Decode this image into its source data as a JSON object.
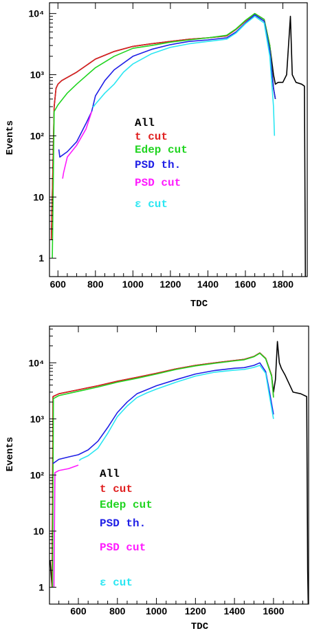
{
  "chart_data": [
    {
      "type": "line",
      "xlabel": "TDC",
      "ylabel": "Events",
      "xlim": [
        555,
        1930
      ],
      "ylog": true,
      "ylim": [
        0.5,
        15000
      ],
      "xticks": [
        600,
        800,
        1000,
        1200,
        1400,
        1600,
        1800
      ],
      "xtick_labels": [
        "600",
        "800",
        "1000",
        "1200",
        "1400",
        "1600",
        "1800"
      ],
      "yticks": [
        1,
        10,
        100,
        1000,
        10000
      ],
      "ytick_labels": [
        "1",
        "10",
        "10²",
        "10³",
        "10⁴"
      ],
      "series": [
        {
          "name": "All",
          "color": "#000000",
          "x": [
            565,
            580,
            590,
            600,
            620,
            650,
            700,
            800,
            900,
            1000,
            1100,
            1200,
            1300,
            1400,
            1500,
            1550,
            1600,
            1650,
            1700,
            1730,
            1750,
            1760,
            1775,
            1800,
            1820,
            1840,
            1850,
            1870,
            1900,
            1915,
            1920
          ],
          "y": [
            2,
            300,
            600,
            700,
            800,
            900,
            1100,
            1800,
            2400,
            2900,
            3200,
            3500,
            3800,
            4000,
            4300,
            5500,
            7500,
            10000,
            8000,
            3000,
            1000,
            700,
            750,
            750,
            1000,
            9000,
            1000,
            750,
            700,
            650,
            0.5
          ]
        },
        {
          "name": "t cut",
          "color": "#e02020",
          "x": [
            565,
            580,
            590,
            600,
            620,
            650,
            700,
            800,
            900,
            1000,
            1100,
            1200,
            1300,
            1400,
            1500,
            1550,
            1600,
            1650,
            1700,
            1730,
            1750,
            1760
          ],
          "y": [
            2,
            300,
            600,
            700,
            800,
            900,
            1100,
            1800,
            2400,
            2900,
            3200,
            3500,
            3800,
            4000,
            4300,
            5500,
            7500,
            10000,
            8000,
            3000,
            600,
            400
          ]
        },
        {
          "name": "Edep cut",
          "color": "#1fd41f",
          "x": [
            570,
            580,
            600,
            650,
            700,
            800,
            900,
            1000,
            1100,
            1200,
            1300,
            1400,
            1500,
            1550,
            1600,
            1650,
            1700,
            1730,
            1750,
            1760
          ],
          "y": [
            1,
            250,
            320,
            500,
            700,
            1300,
            2000,
            2700,
            3000,
            3400,
            3700,
            4000,
            4400,
            5600,
            7700,
            10000,
            8000,
            3000,
            600,
            400
          ]
        },
        {
          "name": "PSD th.",
          "color": "#1e1ee6",
          "x": [
            605,
            610,
            650,
            700,
            750,
            780,
            800,
            850,
            900,
            1000,
            1100,
            1200,
            1300,
            1400,
            1500,
            1550,
            1600,
            1650,
            1700,
            1730,
            1750,
            1760
          ],
          "y": [
            60,
            45,
            55,
            80,
            160,
            250,
            450,
            800,
            1200,
            2000,
            2600,
            3100,
            3500,
            3700,
            4000,
            5000,
            7000,
            9500,
            7500,
            2500,
            600,
            400
          ]
        },
        {
          "name": "PSD cut",
          "color": "#ff19ff",
          "x": [
            625,
            630,
            650,
            700,
            750,
            780
          ],
          "y": [
            20,
            25,
            45,
            70,
            130,
            250
          ]
        },
        {
          "name": "ε cut",
          "color": "#2ae6f2",
          "x": [
            785,
            790,
            800,
            850,
            900,
            950,
            1000,
            1100,
            1200,
            1300,
            1400,
            1500,
            1550,
            1600,
            1650,
            1700,
            1730,
            1750,
            1755
          ],
          "y": [
            300,
            300,
            330,
            500,
            700,
            1100,
            1500,
            2200,
            2800,
            3200,
            3500,
            3800,
            4800,
            6800,
            9000,
            7000,
            2000,
            300,
            100
          ]
        }
      ]
    },
    {
      "type": "line",
      "xlabel": "TDC",
      "ylabel": "Events",
      "xlim": [
        452,
        1780
      ],
      "ylog": true,
      "ylim": [
        0.5,
        45000
      ],
      "xticks": [
        600,
        800,
        1000,
        1200,
        1400,
        1600
      ],
      "xtick_labels": [
        "600",
        "800",
        "1000",
        "1200",
        "1400",
        "1600"
      ],
      "yticks": [
        1,
        10,
        100,
        1000,
        10000
      ],
      "ytick_labels": [
        "1",
        "10",
        "10²",
        "10³",
        "10⁴"
      ],
      "series": [
        {
          "name": "All",
          "color": "#000000",
          "x": [
            455,
            465,
            470,
            500,
            600,
            700,
            800,
            900,
            1000,
            1100,
            1200,
            1300,
            1400,
            1450,
            1500,
            1530,
            1560,
            1590,
            1600,
            1610,
            1620,
            1630,
            1640,
            1660,
            1700,
            1740,
            1770,
            1775,
            1778
          ],
          "y": [
            3,
            1,
            2500,
            2800,
            3300,
            3900,
            4700,
            5500,
            6500,
            7800,
            9000,
            10000,
            11000,
            11500,
            13000,
            15000,
            12000,
            6000,
            3000,
            5000,
            24000,
            10000,
            8000,
            6000,
            3000,
            2800,
            2500,
            2,
            0.5
          ]
        },
        {
          "name": "t cut",
          "color": "#e02020",
          "x": [
            465,
            470,
            500,
            600,
            700,
            800,
            900,
            1000,
            1100,
            1200,
            1300,
            1400,
            1450,
            1500,
            1530,
            1560,
            1590,
            1600
          ],
          "y": [
            1,
            2500,
            2800,
            3300,
            3900,
            4700,
            5500,
            6500,
            7800,
            9000,
            10000,
            11000,
            11500,
            13000,
            15000,
            12000,
            6000,
            2500
          ]
        },
        {
          "name": "Edep cut",
          "color": "#1fd41f",
          "x": [
            468,
            472,
            500,
            600,
            700,
            800,
            900,
            1000,
            1100,
            1200,
            1300,
            1400,
            1450,
            1500,
            1530,
            1560,
            1590,
            1600
          ],
          "y": [
            1,
            2300,
            2600,
            3100,
            3700,
            4500,
            5300,
            6300,
            7600,
            8800,
            9800,
            10800,
            11300,
            12800,
            14800,
            11800,
            5800,
            2400
          ]
        },
        {
          "name": "PSD th.",
          "color": "#1e1ee6",
          "x": [
            470,
            500,
            550,
            600,
            650,
            700,
            750,
            800,
            850,
            900,
            950,
            1000,
            1100,
            1200,
            1300,
            1400,
            1450,
            1500,
            1530,
            1560,
            1580,
            1600
          ],
          "y": [
            160,
            190,
            210,
            230,
            280,
            400,
            700,
            1300,
            2000,
            2800,
            3300,
            3900,
            5000,
            6300,
            7300,
            8000,
            8200,
            9000,
            10000,
            7000,
            3000,
            1200
          ]
        },
        {
          "name": "PSD cut",
          "color": "#ff19ff",
          "x": [
            475,
            480,
            500,
            550,
            600
          ],
          "y": [
            1,
            110,
            120,
            130,
            150
          ]
        },
        {
          "name": "ε cut",
          "color": "#2ae6f2",
          "x": [
            605,
            610,
            650,
            700,
            750,
            800,
            850,
            900,
            950,
            1000,
            1100,
            1200,
            1300,
            1400,
            1450,
            1500,
            1530,
            1560,
            1580,
            1600
          ],
          "y": [
            180,
            190,
            220,
            300,
            550,
            1100,
            1700,
            2400,
            2900,
            3400,
            4500,
            5800,
            6800,
            7400,
            7600,
            8300,
            9000,
            6500,
            2500,
            1000
          ]
        }
      ]
    }
  ]
}
